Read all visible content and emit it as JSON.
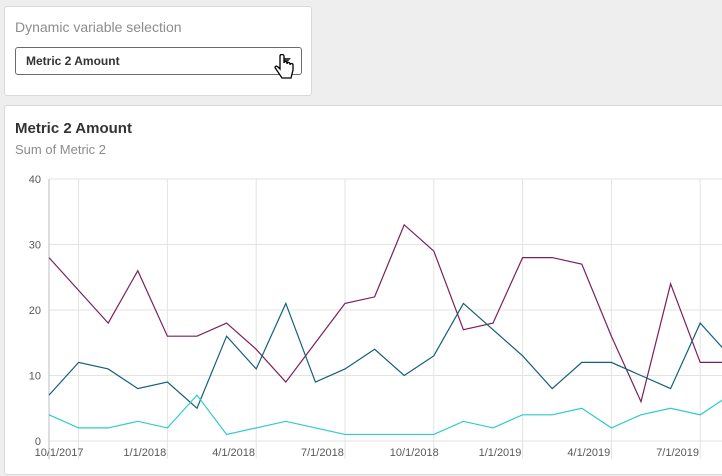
{
  "filter": {
    "title": "Dynamic variable selection",
    "selected": "Metric 2 Amount"
  },
  "chart": {
    "title": "Metric 2 Amount",
    "subtitle": "Sum of Metric 2"
  },
  "chart_data": {
    "type": "line",
    "title": "Metric 2 Amount",
    "subtitle": "Sum of Metric 2",
    "xlabel": "",
    "ylabel": "",
    "ylim": [
      0,
      40
    ],
    "yticks": [
      0,
      10,
      20,
      30,
      40
    ],
    "grid": true,
    "x": [
      "2017-09",
      "2017-10",
      "2017-11",
      "2017-12",
      "2018-01",
      "2018-02",
      "2018-03",
      "2018-04",
      "2018-05",
      "2018-06",
      "2018-07",
      "2018-08",
      "2018-09",
      "2018-10",
      "2018-11",
      "2018-12",
      "2019-01",
      "2019-02",
      "2019-03",
      "2019-04",
      "2019-05",
      "2019-06",
      "2019-07",
      "2019-08"
    ],
    "xtick_labels": [
      "10/1/2017",
      "1/1/2018",
      "4/1/2018",
      "7/1/2018",
      "10/1/2018",
      "1/1/2019",
      "4/1/2019",
      "7/1/2019"
    ],
    "series": [
      {
        "color": "#7a2159",
        "values": [
          28,
          23,
          18,
          26,
          16,
          16,
          18,
          14,
          9,
          15,
          21,
          22,
          33,
          29,
          17,
          18,
          28,
          28,
          27,
          16,
          6,
          24,
          12,
          12
        ]
      },
      {
        "color": "#13607c",
        "values": [
          7,
          12,
          11,
          8,
          9,
          5,
          16,
          11,
          21,
          9,
          11,
          14,
          10,
          13,
          21,
          17,
          13,
          8,
          12,
          12,
          10,
          8,
          18,
          13
        ]
      },
      {
        "color": "#2dcbcb",
        "values": [
          4,
          2,
          2,
          3,
          2,
          7,
          1,
          2,
          3,
          2,
          1,
          1,
          1,
          1,
          3,
          2,
          4,
          4,
          5,
          2,
          4,
          5,
          4,
          7
        ]
      }
    ]
  }
}
